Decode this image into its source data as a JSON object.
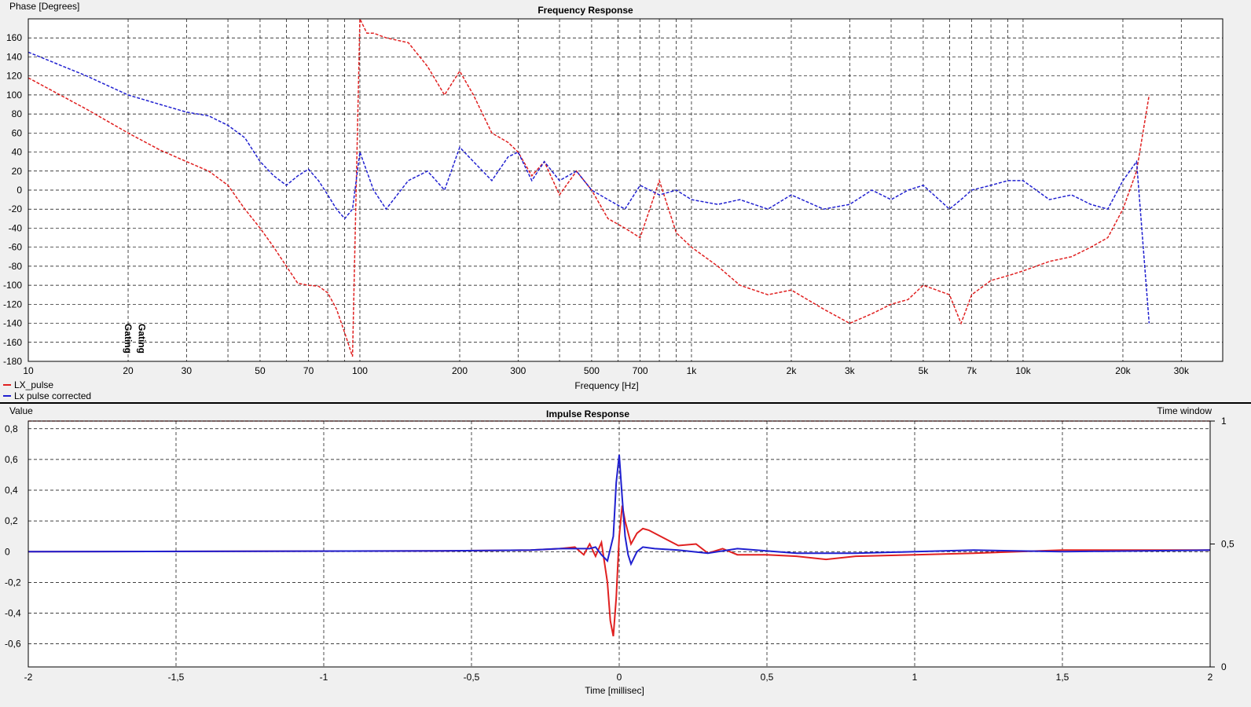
{
  "chart_data": [
    {
      "type": "line",
      "title": "Frequency Response",
      "ylabel": "Phase [Degrees]",
      "xlabel": "Frequency [Hz]",
      "x_scale": "log",
      "xlim": [
        10,
        40000
      ],
      "ylim": [
        -180,
        180
      ],
      "grid": true,
      "legend": "bottom-left",
      "xticks": [
        10,
        20,
        30,
        50,
        70,
        100,
        200,
        300,
        500,
        700,
        1000,
        2000,
        3000,
        5000,
        7000,
        10000,
        20000,
        30000
      ],
      "xtick_labels": [
        "10",
        "20",
        "30",
        "50",
        "70",
        "100",
        "200",
        "300",
        "500",
        "700",
        "1k",
        "2k",
        "3k",
        "5k",
        "7k",
        "10k",
        "20k",
        "30k"
      ],
      "yticks": [
        -180,
        -160,
        -140,
        -120,
        -100,
        -80,
        -60,
        -40,
        -20,
        0,
        20,
        40,
        60,
        80,
        100,
        120,
        140,
        160
      ],
      "markers": [
        {
          "label": "Gating",
          "x": 20,
          "color": "#e02020"
        },
        {
          "label": "Gating",
          "x": 22,
          "color": "#2020d0"
        }
      ],
      "series": [
        {
          "name": "LX_pulse",
          "color": "#e02020",
          "style": "dashed",
          "x": [
            10,
            15,
            20,
            25,
            30,
            35,
            40,
            45,
            50,
            55,
            60,
            65,
            70,
            75,
            80,
            85,
            90,
            95,
            100,
            105,
            110,
            120,
            140,
            160,
            180,
            200,
            220,
            250,
            280,
            300,
            330,
            360,
            400,
            450,
            500,
            560,
            630,
            700,
            800,
            900,
            1000,
            1200,
            1400,
            1700,
            2000,
            2500,
            3000,
            3500,
            4000,
            4500,
            5000,
            6000,
            6500,
            7000,
            8000,
            9000,
            10000,
            12000,
            14000,
            16000,
            18000,
            20000,
            22000,
            24000
          ],
          "y": [
            118,
            85,
            60,
            42,
            30,
            20,
            5,
            -20,
            -40,
            -60,
            -80,
            -98,
            -100,
            -101,
            -108,
            -125,
            -150,
            -175,
            180,
            165,
            165,
            160,
            155,
            130,
            100,
            125,
            100,
            60,
            50,
            40,
            15,
            30,
            -5,
            20,
            0,
            -30,
            -40,
            -50,
            10,
            -45,
            -60,
            -80,
            -100,
            -110,
            -105,
            -125,
            -140,
            -130,
            -120,
            -115,
            -100,
            -110,
            -140,
            -110,
            -95,
            -90,
            -85,
            -75,
            -70,
            -60,
            -50,
            -20,
            20,
            100
          ]
        },
        {
          "name": "Lx pulse corrected",
          "color": "#2020d0",
          "style": "dashed",
          "x": [
            10,
            15,
            20,
            25,
            30,
            35,
            40,
            45,
            50,
            55,
            60,
            65,
            70,
            75,
            80,
            85,
            90,
            95,
            100,
            110,
            120,
            140,
            160,
            180,
            200,
            220,
            250,
            280,
            300,
            330,
            360,
            400,
            450,
            500,
            560,
            630,
            700,
            800,
            900,
            1000,
            1200,
            1400,
            1700,
            2000,
            2500,
            3000,
            3500,
            4000,
            4500,
            5000,
            6000,
            6500,
            7000,
            8000,
            9000,
            10000,
            12000,
            14000,
            16000,
            18000,
            20000,
            22000,
            24000
          ],
          "y": [
            145,
            120,
            100,
            90,
            82,
            78,
            68,
            55,
            30,
            15,
            5,
            15,
            22,
            10,
            -5,
            -20,
            -30,
            -20,
            40,
            0,
            -20,
            10,
            20,
            0,
            45,
            30,
            10,
            35,
            40,
            10,
            30,
            10,
            20,
            0,
            -10,
            -20,
            5,
            -5,
            0,
            -10,
            -15,
            -10,
            -20,
            -5,
            -20,
            -15,
            0,
            -10,
            0,
            5,
            -20,
            -10,
            0,
            5,
            10,
            10,
            -10,
            -5,
            -15,
            -20,
            10,
            30,
            -140
          ]
        }
      ]
    },
    {
      "type": "line",
      "title": "Impulse Response",
      "ylabel": "Value",
      "xlabel": "Time [millisec]",
      "xlim": [
        -2,
        2
      ],
      "ylim": [
        -0.75,
        0.85
      ],
      "grid": true,
      "y2label": "Time window",
      "y2lim": [
        0,
        1
      ],
      "y2ticks": [
        0,
        0.5,
        1
      ],
      "y2tick_labels": [
        "0",
        "0,5",
        "1"
      ],
      "xticks": [
        -2,
        -1.5,
        -1,
        -0.5,
        0,
        0.5,
        1,
        1.5,
        2
      ],
      "xtick_labels": [
        "-2",
        "-1,5",
        "-1",
        "-0,5",
        "0",
        "0,5",
        "1",
        "1,5",
        "2"
      ],
      "yticks": [
        -0.6,
        -0.4,
        -0.2,
        0,
        0.2,
        0.4,
        0.6,
        0.8
      ],
      "ytick_labels": [
        "-0,6",
        "-0,4",
        "-0,2",
        "0",
        "0,2",
        "0,4",
        "0,6",
        "0,8"
      ],
      "series": [
        {
          "name": "LX_pulse",
          "color": "#e02020",
          "x": [
            -2,
            -0.6,
            -0.3,
            -0.2,
            -0.15,
            -0.12,
            -0.1,
            -0.08,
            -0.06,
            -0.04,
            -0.03,
            -0.02,
            -0.01,
            0,
            0.01,
            0.02,
            0.04,
            0.06,
            0.08,
            0.1,
            0.14,
            0.2,
            0.26,
            0.3,
            0.35,
            0.4,
            0.5,
            0.6,
            0.7,
            0.8,
            1,
            1.2,
            1.5,
            2
          ],
          "y": [
            0,
            0.005,
            0.01,
            0.02,
            0.03,
            -0.02,
            0.05,
            -0.03,
            0.06,
            -0.2,
            -0.45,
            -0.55,
            -0.3,
            0.1,
            0.3,
            0.2,
            0.05,
            0.12,
            0.15,
            0.14,
            0.1,
            0.04,
            0.05,
            -0.01,
            0.02,
            -0.02,
            -0.02,
            -0.03,
            -0.05,
            -0.03,
            -0.02,
            -0.01,
            0.01,
            0.01
          ]
        },
        {
          "name": "Lx pulse corrected",
          "color": "#2020d0",
          "x": [
            -2,
            -0.6,
            -0.3,
            -0.2,
            -0.1,
            -0.08,
            -0.06,
            -0.04,
            -0.02,
            -0.01,
            0,
            0.01,
            0.02,
            0.03,
            0.04,
            0.06,
            0.08,
            0.12,
            0.2,
            0.3,
            0.4,
            0.6,
            0.8,
            1,
            1.2,
            1.5,
            2
          ],
          "y": [
            0,
            0.005,
            0.01,
            0.02,
            0.02,
            0.03,
            -0.02,
            -0.06,
            0.1,
            0.45,
            0.63,
            0.35,
            0.1,
            -0.02,
            -0.08,
            0.0,
            0.03,
            0.02,
            0.01,
            -0.01,
            0.02,
            -0.01,
            -0.01,
            0.0,
            0.01,
            0.0,
            0.01
          ]
        },
        {
          "name": "Time window",
          "color": "#e02020",
          "style": "dashed",
          "axis": "y2",
          "x": [
            -2,
            2
          ],
          "y": [
            1,
            1
          ]
        }
      ]
    }
  ]
}
